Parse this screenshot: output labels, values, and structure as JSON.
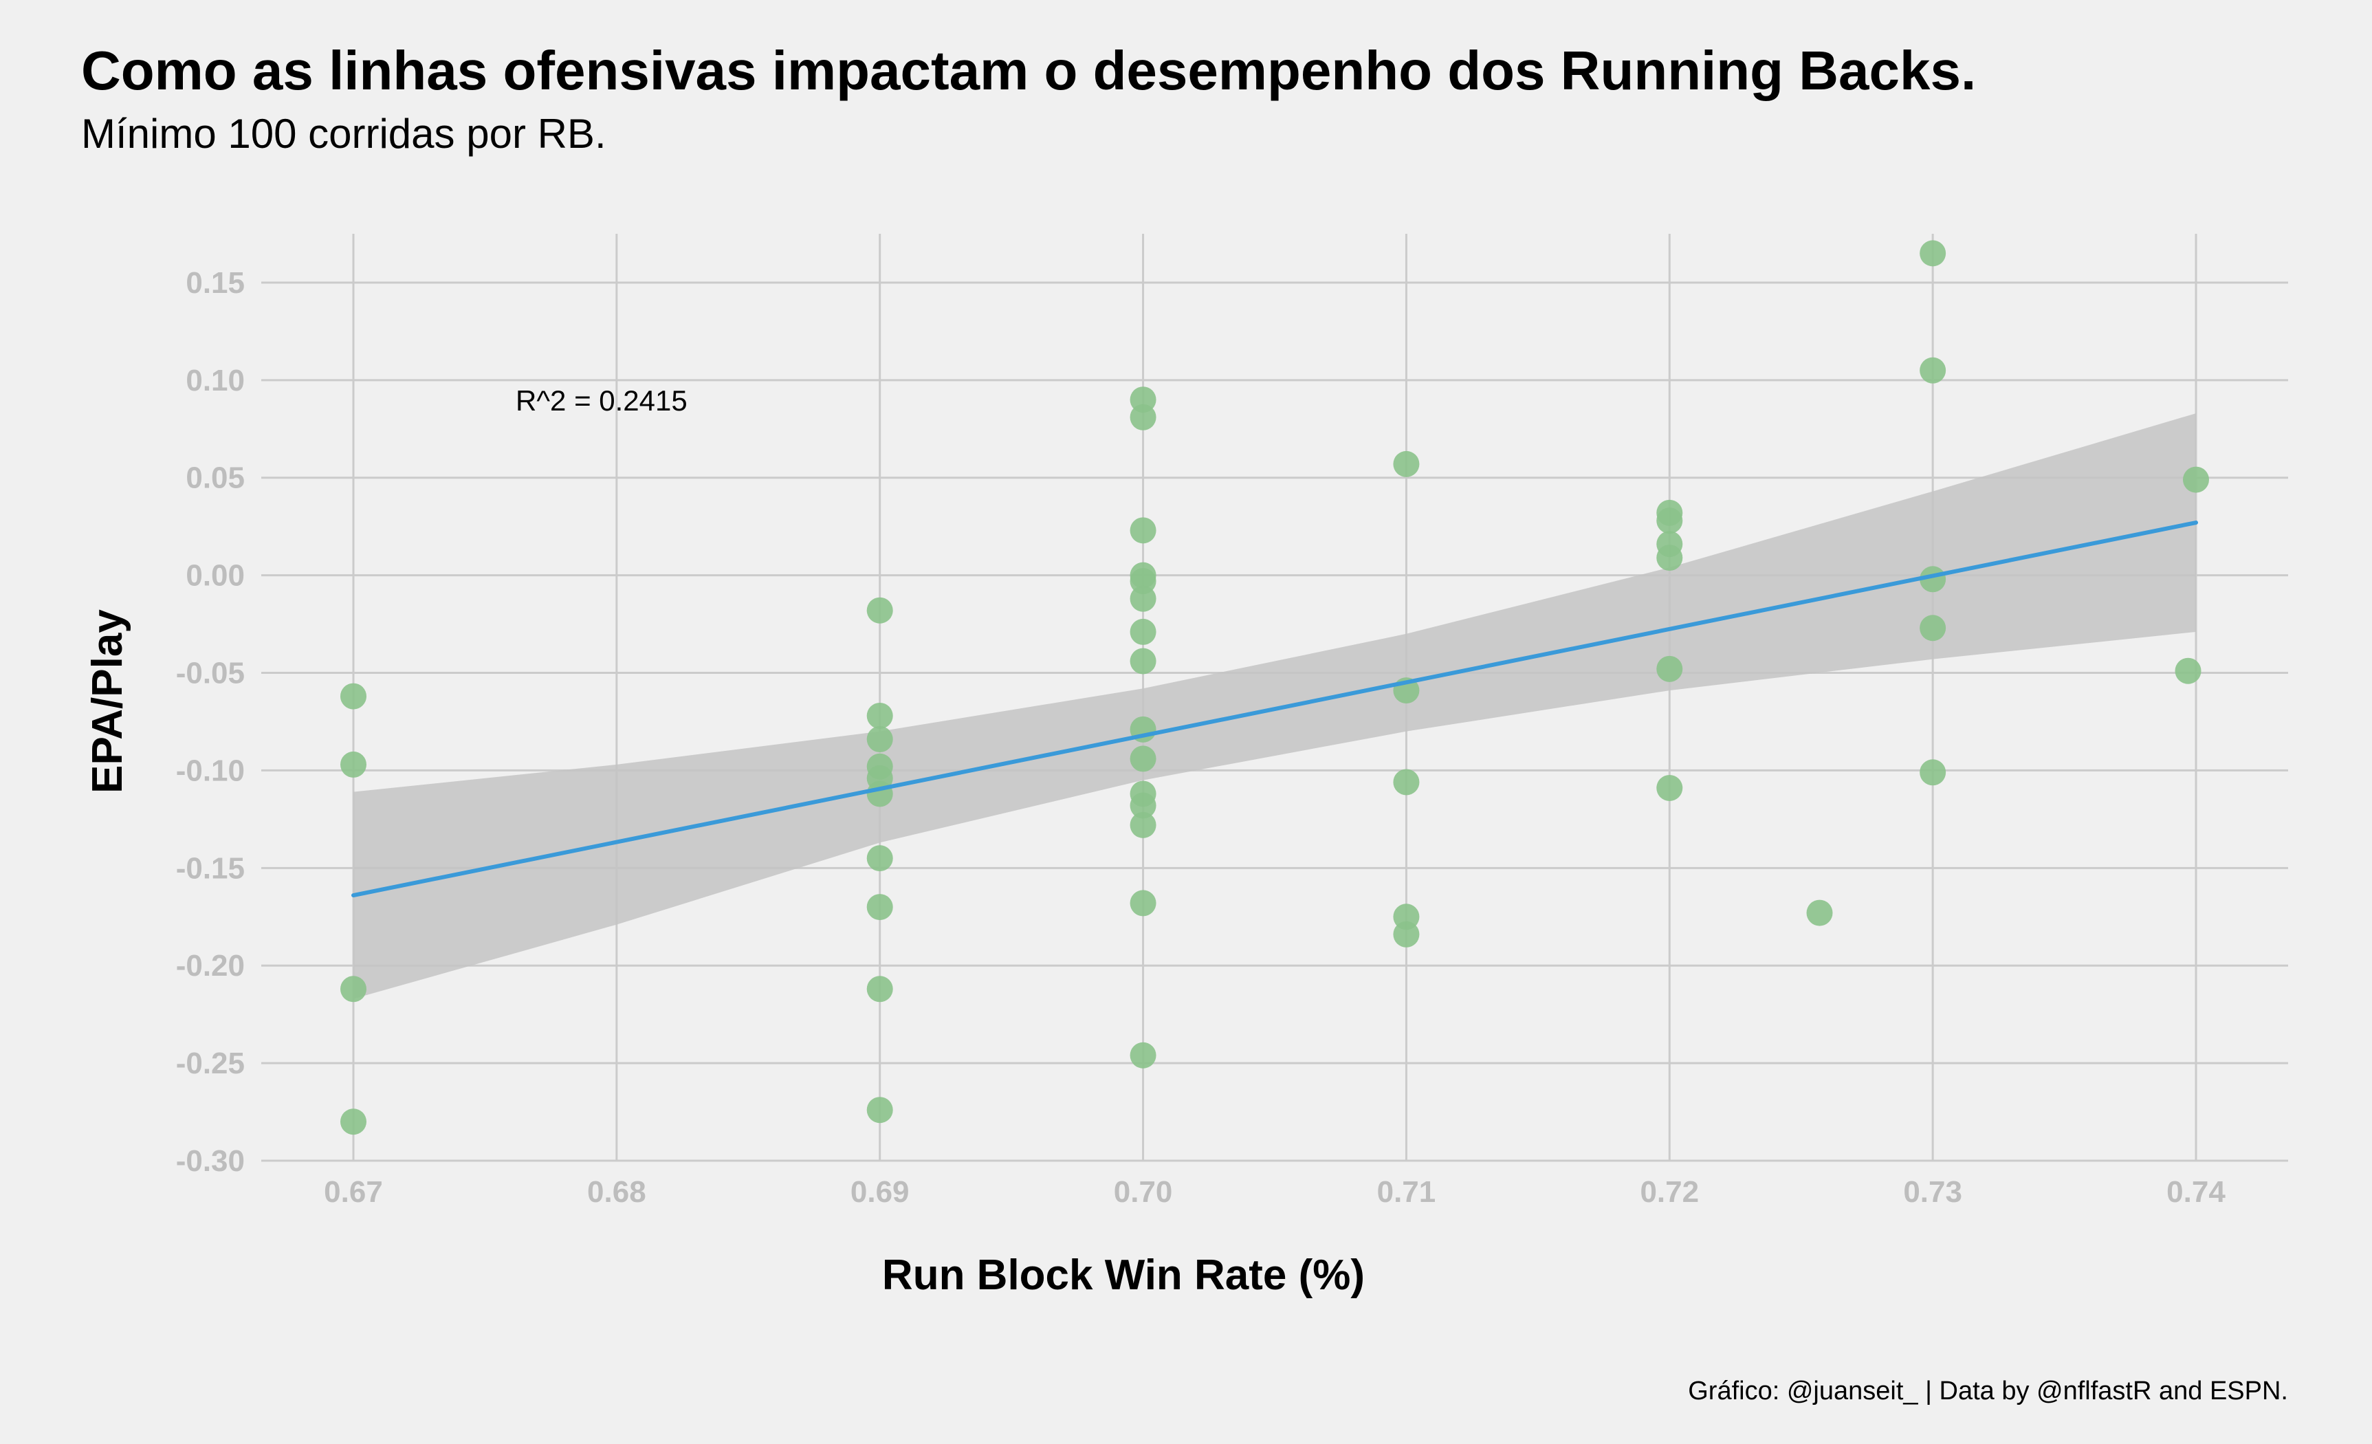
{
  "chart_data": {
    "type": "scatter",
    "title": "Como as linhas ofensivas impactam o desempenho dos Running Backs.",
    "subtitle": "Mínimo 100 corridas por RB.",
    "xlabel": "Run Block Win Rate (%)",
    "ylabel": "EPA/Play",
    "caption": "Gráfico: @juanseit_ | Data by @nflfastR and ESPN.",
    "annotation": "R^2 =  0.2415",
    "xlim": [
      0.6665,
      0.7435
    ],
    "ylim": [
      -0.3,
      0.175
    ],
    "x_ticks": [
      0.67,
      0.68,
      0.69,
      0.7,
      0.71,
      0.72,
      0.73,
      0.74
    ],
    "x_tick_labels": [
      "0.67",
      "0.68",
      "0.69",
      "0.70",
      "0.71",
      "0.72",
      "0.73",
      "0.74"
    ],
    "y_ticks": [
      -0.3,
      -0.25,
      -0.2,
      -0.15,
      -0.1,
      -0.05,
      0.0,
      0.05,
      0.1,
      0.15
    ],
    "y_tick_labels": [
      "-0.30",
      "-0.25",
      "-0.20",
      "-0.15",
      "-0.10",
      "-0.05",
      "0.00",
      "0.05",
      "0.10",
      "0.15"
    ],
    "grid": true,
    "points": [
      {
        "x": 0.67,
        "y": -0.062
      },
      {
        "x": 0.67,
        "y": -0.097
      },
      {
        "x": 0.67,
        "y": -0.212
      },
      {
        "x": 0.67,
        "y": -0.28
      },
      {
        "x": 0.69,
        "y": -0.018
      },
      {
        "x": 0.69,
        "y": -0.072
      },
      {
        "x": 0.69,
        "y": -0.084
      },
      {
        "x": 0.69,
        "y": -0.098
      },
      {
        "x": 0.69,
        "y": -0.104
      },
      {
        "x": 0.69,
        "y": -0.112
      },
      {
        "x": 0.69,
        "y": -0.145
      },
      {
        "x": 0.69,
        "y": -0.17
      },
      {
        "x": 0.69,
        "y": -0.212
      },
      {
        "x": 0.69,
        "y": -0.274
      },
      {
        "x": 0.7,
        "y": 0.09
      },
      {
        "x": 0.7,
        "y": 0.081
      },
      {
        "x": 0.7,
        "y": 0.023
      },
      {
        "x": 0.7,
        "y": 0.0
      },
      {
        "x": 0.7,
        "y": -0.003
      },
      {
        "x": 0.7,
        "y": -0.012
      },
      {
        "x": 0.7,
        "y": -0.029
      },
      {
        "x": 0.7,
        "y": -0.044
      },
      {
        "x": 0.7,
        "y": -0.079
      },
      {
        "x": 0.7,
        "y": -0.094
      },
      {
        "x": 0.7,
        "y": -0.112
      },
      {
        "x": 0.7,
        "y": -0.118
      },
      {
        "x": 0.7,
        "y": -0.128
      },
      {
        "x": 0.7,
        "y": -0.168
      },
      {
        "x": 0.7,
        "y": -0.246
      },
      {
        "x": 0.71,
        "y": 0.057
      },
      {
        "x": 0.71,
        "y": -0.059
      },
      {
        "x": 0.71,
        "y": -0.106
      },
      {
        "x": 0.71,
        "y": -0.175
      },
      {
        "x": 0.71,
        "y": -0.184
      },
      {
        "x": 0.72,
        "y": 0.032
      },
      {
        "x": 0.72,
        "y": 0.028
      },
      {
        "x": 0.72,
        "y": 0.016
      },
      {
        "x": 0.72,
        "y": 0.009
      },
      {
        "x": 0.72,
        "y": -0.048
      },
      {
        "x": 0.72,
        "y": -0.109
      },
      {
        "x": 0.7257,
        "y": -0.173
      },
      {
        "x": 0.73,
        "y": 0.165
      },
      {
        "x": 0.73,
        "y": 0.105
      },
      {
        "x": 0.73,
        "y": -0.002
      },
      {
        "x": 0.73,
        "y": -0.027
      },
      {
        "x": 0.73,
        "y": -0.101
      },
      {
        "x": 0.74,
        "y": 0.049
      },
      {
        "x": 0.7397,
        "y": -0.049
      }
    ],
    "regression": {
      "x": [
        0.67,
        0.74
      ],
      "y": [
        -0.164,
        0.027
      ]
    },
    "confidence_band": {
      "x": [
        0.67,
        0.68,
        0.69,
        0.7,
        0.71,
        0.72,
        0.73,
        0.74
      ],
      "upper": [
        -0.111,
        -0.097,
        -0.08,
        -0.058,
        -0.03,
        0.004,
        0.043,
        0.083
      ],
      "lower": [
        -0.217,
        -0.179,
        -0.137,
        -0.105,
        -0.08,
        -0.059,
        -0.043,
        -0.029
      ]
    },
    "colors": {
      "background": "#f0f0f0",
      "grid": "#cbcbcb",
      "points": "#8bc28b",
      "line": "#3a9ad9",
      "band": "#c4c4c4",
      "tick_text": "#bdbdbd"
    }
  }
}
